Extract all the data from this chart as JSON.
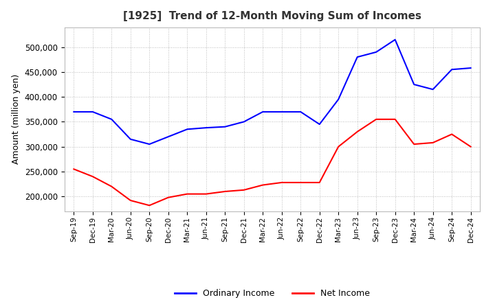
{
  "title": "[1925]  Trend of 12-Month Moving Sum of Incomes",
  "ylabel": "Amount (million yen)",
  "background_color": "#ffffff",
  "grid_color": "#aaaaaa",
  "plot_bg_color": "#ffffff",
  "ordinary_income_color": "#0000ff",
  "net_income_color": "#ff0000",
  "x_labels": [
    "Sep-19",
    "Dec-19",
    "Mar-20",
    "Jun-20",
    "Sep-20",
    "Dec-20",
    "Mar-21",
    "Jun-21",
    "Sep-21",
    "Dec-21",
    "Mar-22",
    "Jun-22",
    "Sep-22",
    "Dec-22",
    "Mar-23",
    "Jun-23",
    "Sep-23",
    "Dec-23",
    "Mar-24",
    "Jun-24",
    "Sep-24",
    "Dec-24"
  ],
  "ordinary_income": [
    370000,
    370000,
    355000,
    315000,
    305000,
    320000,
    335000,
    338000,
    340000,
    350000,
    370000,
    370000,
    370000,
    345000,
    395000,
    480000,
    490000,
    515000,
    425000,
    415000,
    455000,
    458000
  ],
  "net_income": [
    255000,
    240000,
    220000,
    192000,
    182000,
    198000,
    205000,
    205000,
    210000,
    213000,
    223000,
    228000,
    228000,
    228000,
    300000,
    330000,
    355000,
    355000,
    305000,
    308000,
    325000,
    300000
  ],
  "ylim_min": 170000,
  "ylim_max": 540000,
  "yticks": [
    200000,
    250000,
    300000,
    350000,
    400000,
    450000,
    500000
  ],
  "legend_labels": [
    "Ordinary Income",
    "Net Income"
  ]
}
